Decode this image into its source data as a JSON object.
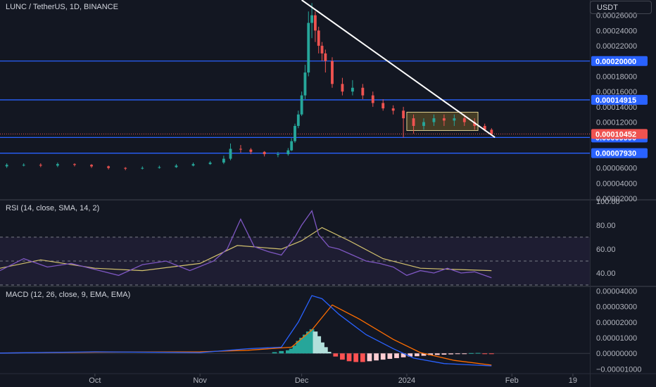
{
  "header": {
    "title": "LUNC / TetherUS, 1D, BINANCE",
    "currency": "USDT"
  },
  "colors": {
    "background": "#131722",
    "up": "#26a69a",
    "down": "#ef5350",
    "level_line": "#2962ff",
    "trend_line": "#ffffff",
    "rsi_line": "#7e57c2",
    "rsi_ma": "#d4c36f",
    "macd_line": "#2962ff",
    "signal_line": "#ff6d00"
  },
  "chart_data": [
    {
      "type": "candlestick",
      "pane": "price",
      "ylim": [
        2e-05,
        0.00028
      ],
      "x_tick_labels": [
        "Oct",
        "Nov",
        "Dec",
        "2024",
        "Feb",
        "19"
      ],
      "y_tick_labels": [
        "0.00026000",
        "0.00024000",
        "0.00022000",
        "0.00018000",
        "0.00016000",
        "0.00014000",
        "0.00012000",
        "0.00006000",
        "0.00004000",
        "0.00002000"
      ],
      "x_ticks": [
        "2023-10-01",
        "2023-11-01",
        "2023-12-01",
        "2024-01-01",
        "2024-02-01",
        "2024-02-19"
      ],
      "x_range": [
        "2023-09-03",
        "2024-02-24"
      ],
      "series": [
        {
          "name": "LUNC / TetherUS",
          "x": [
            "2023-09-05",
            "2023-09-10",
            "2023-09-15",
            "2023-09-20",
            "2023-09-25",
            "2023-09-30",
            "2023-10-05",
            "2023-10-10",
            "2023-10-15",
            "2023-10-20",
            "2023-10-25",
            "2023-10-30",
            "2023-11-04",
            "2023-11-08",
            "2023-11-10",
            "2023-11-13",
            "2023-11-16",
            "2023-11-20",
            "2023-11-24",
            "2023-11-27",
            "2023-11-28",
            "2023-11-29",
            "2023-11-30",
            "2023-12-01",
            "2023-12-02",
            "2023-12-03",
            "2023-12-04",
            "2023-12-05",
            "2023-12-06",
            "2023-12-07",
            "2023-12-08",
            "2023-12-10",
            "2023-12-13",
            "2023-12-16",
            "2023-12-19",
            "2023-12-22",
            "2023-12-25",
            "2023-12-28",
            "2023-12-31",
            "2024-01-03",
            "2024-01-06",
            "2024-01-09",
            "2024-01-12",
            "2024-01-15",
            "2024-01-18",
            "2024-01-21",
            "2024-01-24",
            "2024-01-26"
          ],
          "open": [
            6.2e-05,
            6.4e-05,
            6.4e-05,
            6.3e-05,
            6.5e-05,
            6.4e-05,
            6.2e-05,
            6e-05,
            5.9e-05,
            6e-05,
            6.1e-05,
            6.3e-05,
            6.5e-05,
            6.7e-05,
            7.2e-05,
            8.5e-05,
            8.4e-05,
            8.1e-05,
            7.8e-05,
            7.8e-05,
            8.3e-05,
            9.5e-05,
            0.000115,
            0.00013,
            0.000155,
            0.000185,
            0.00025,
            0.00026,
            0.00024,
            0.00022,
            0.00021,
            0.0002,
            0.00017,
            0.00016,
            0.000165,
            0.000155,
            0.000145,
            0.000138,
            0.000135,
            0.000125,
            0.000115,
            0.00012,
            0.000125,
            0.000122,
            0.000125,
            0.00012,
            0.000115,
            0.00011
          ],
          "close": [
            6.4e-05,
            6.4e-05,
            6.3e-05,
            6.5e-05,
            6.4e-05,
            6.2e-05,
            6e-05,
            5.9e-05,
            6e-05,
            6.1e-05,
            6.3e-05,
            6.5e-05,
            6.7e-05,
            7.2e-05,
            8.5e-05,
            8.4e-05,
            8.1e-05,
            7.8e-05,
            7.8e-05,
            8.3e-05,
            9.5e-05,
            0.000115,
            0.00013,
            0.000155,
            0.000185,
            0.00025,
            0.00026,
            0.00024,
            0.00022,
            0.00021,
            0.0002,
            0.00017,
            0.00016,
            0.000165,
            0.000155,
            0.000145,
            0.000138,
            0.000135,
            0.000125,
            0.000115,
            0.00012,
            0.000125,
            0.000122,
            0.000125,
            0.00012,
            0.000115,
            0.00011,
            0.0001045
          ],
          "high": [
            6.6e-05,
            6.6e-05,
            6.6e-05,
            6.7e-05,
            6.6e-05,
            6.5e-05,
            6.3e-05,
            6.1e-05,
            6.2e-05,
            6.3e-05,
            6.5e-05,
            6.7e-05,
            6.9e-05,
            7.6e-05,
            9.2e-05,
            9e-05,
            8.6e-05,
            8.2e-05,
            8.1e-05,
            8.6e-05,
            9.9e-05,
            0.000118,
            0.000135,
            0.00016,
            0.000195,
            0.000265,
            0.000276,
            0.000265,
            0.000245,
            0.000225,
            0.000215,
            0.000205,
            0.000178,
            0.000175,
            0.00017,
            0.00016,
            0.00015,
            0.000142,
            0.00014,
            0.00013,
            0.000125,
            0.00013,
            0.00013,
            0.00013,
            0.00013,
            0.000125,
            0.000118,
            0.000112
          ],
          "low": [
            6e-05,
            6.2e-05,
            6.1e-05,
            6.1e-05,
            6.2e-05,
            6e-05,
            5.8e-05,
            5.7e-05,
            5.8e-05,
            5.9e-05,
            6e-05,
            6.2e-05,
            6.4e-05,
            6.5e-05,
            7e-05,
            8e-05,
            7.8e-05,
            7.5e-05,
            7.4e-05,
            7.6e-05,
            8.2e-05,
            9.3e-05,
            0.000112,
            0.000128,
            0.00015,
            0.00018,
            0.00023,
            0.000225,
            0.00021,
            0.0002,
            0.000185,
            0.000165,
            0.000155,
            0.000155,
            0.00015,
            0.00014,
            0.000135,
            0.00013,
            0.0001,
            0.000105,
            0.00011,
            0.000115,
            0.000115,
            0.000115,
            0.000115,
            0.00011,
            0.000108,
            0.000103
          ]
        }
      ],
      "levels": [
        {
          "label": "0.00020000",
          "value": 0.0002
        },
        {
          "label": "0.00014915",
          "value": 0.00014915
        },
        {
          "label": "0.00009990",
          "value": 9.99e-05
        },
        {
          "label": "0.00007930",
          "value": 7.93e-05
        }
      ],
      "last_price": {
        "label": "0.00010452",
        "value": 0.00010452
      },
      "trend_line": {
        "x": [
          "2023-12-01",
          "2024-01-27"
        ],
        "y": [
          0.00028,
          0.0001
        ]
      },
      "range_box": {
        "x": [
          "2024-01-01",
          "2024-01-22"
        ],
        "y": [
          0.000109,
          0.000133
        ]
      }
    },
    {
      "type": "line",
      "pane": "rsi",
      "title": "RSI (14, close, SMA, 14, 2)",
      "ylim": [
        30,
        100
      ],
      "y_tick_labels": [
        "100.00",
        "80.00",
        "60.00",
        "40.00"
      ],
      "bands": [
        30,
        50,
        70
      ],
      "series": [
        {
          "name": "RSI",
          "x": [
            "2023-09-03",
            "2023-09-10",
            "2023-09-17",
            "2023-09-24",
            "2023-10-01",
            "2023-10-08",
            "2023-10-15",
            "2023-10-22",
            "2023-10-29",
            "2023-11-05",
            "2023-11-09",
            "2023-11-13",
            "2023-11-17",
            "2023-11-21",
            "2023-11-25",
            "2023-11-29",
            "2023-12-01",
            "2023-12-04",
            "2023-12-06",
            "2023-12-09",
            "2023-12-12",
            "2023-12-16",
            "2023-12-20",
            "2023-12-24",
            "2023-12-28",
            "2024-01-01",
            "2024-01-05",
            "2024-01-09",
            "2024-01-13",
            "2024-01-17",
            "2024-01-21",
            "2024-01-26"
          ],
          "y": [
            42,
            52,
            45,
            48,
            43,
            38,
            47,
            50,
            42,
            50,
            60,
            85,
            62,
            58,
            55,
            70,
            80,
            92,
            72,
            62,
            60,
            55,
            50,
            48,
            45,
            38,
            42,
            40,
            44,
            40,
            41,
            36
          ]
        },
        {
          "name": "RSI-based MA",
          "x": [
            "2023-09-03",
            "2023-09-15",
            "2023-10-01",
            "2023-10-15",
            "2023-11-01",
            "2023-11-12",
            "2023-11-25",
            "2023-12-01",
            "2023-12-07",
            "2023-12-15",
            "2023-12-25",
            "2024-01-05",
            "2024-01-15",
            "2024-01-26"
          ],
          "y": [
            44,
            51,
            44,
            42,
            48,
            63,
            60,
            67,
            78,
            67,
            52,
            44,
            43,
            42
          ]
        }
      ]
    },
    {
      "type": "bar+line",
      "pane": "macd",
      "title": "MACD (12, 26, close, 9, EMA, EMA)",
      "ylim": [
        -1.25e-05,
        4.2e-05
      ],
      "y_tick_labels": [
        "0.00004000",
        "0.00003000",
        "0.00002000",
        "0.00001000",
        "0.00000000",
        "−0.00001000"
      ],
      "series": [
        {
          "name": "MACD",
          "x": [
            "2023-09-03",
            "2023-10-01",
            "2023-11-01",
            "2023-11-15",
            "2023-11-25",
            "2023-11-30",
            "2023-12-04",
            "2023-12-07",
            "2023-12-12",
            "2023-12-20",
            "2023-12-28",
            "2024-01-03",
            "2024-01-12",
            "2024-01-26"
          ],
          "y": [
            2e-07,
            1e-06,
            5e-07,
            3e-06,
            4e-06,
            2e-05,
            3.7e-05,
            3.5e-05,
            2.5e-05,
            1.2e-05,
            3e-06,
            -3e-06,
            -6.5e-06,
            -8e-06
          ]
        },
        {
          "name": "Signal",
          "x": [
            "2023-09-03",
            "2023-10-01",
            "2023-11-01",
            "2023-11-15",
            "2023-11-28",
            "2023-12-04",
            "2023-12-10",
            "2023-12-18",
            "2023-12-28",
            "2024-01-05",
            "2024-01-15",
            "2024-01-26"
          ],
          "y": [
            3e-07,
            8e-07,
            1e-06,
            2e-06,
            4e-06,
            1.5e-05,
            3.1e-05,
            2.2e-05,
            9e-06,
            5e-07,
            -4.5e-06,
            -7.5e-06
          ]
        },
        {
          "name": "Histogram",
          "x": [
            "2023-11-23",
            "2023-11-25",
            "2023-11-27",
            "2023-11-28",
            "2023-11-29",
            "2023-11-30",
            "2023-12-01",
            "2023-12-02",
            "2023-12-03",
            "2023-12-04",
            "2023-12-05",
            "2023-12-06",
            "2023-12-07",
            "2023-12-08",
            "2023-12-09",
            "2023-12-11",
            "2023-12-13",
            "2023-12-15",
            "2023-12-17",
            "2023-12-19",
            "2023-12-21",
            "2023-12-23",
            "2023-12-25",
            "2023-12-27",
            "2023-12-29",
            "2023-12-31",
            "2024-01-02",
            "2024-01-04",
            "2024-01-06",
            "2024-01-08",
            "2024-01-10",
            "2024-01-12",
            "2024-01-14",
            "2024-01-16",
            "2024-01-18",
            "2024-01-20",
            "2024-01-22",
            "2024-01-24",
            "2024-01-26"
          ],
          "y": [
            8e-07,
            1.5e-06,
            2e-06,
            3e-06,
            5e-06,
            8e-06,
            1e-05,
            1.2e-05,
            1.4e-05,
            1.55e-05,
            1.4e-05,
            1.1e-05,
            7e-06,
            4e-06,
            1e-06,
            -2e-06,
            -4e-06,
            -5e-06,
            -5.5e-06,
            -5.5e-06,
            -5e-06,
            -4.5e-06,
            -4e-06,
            -3.5e-06,
            -3e-06,
            -2.5e-06,
            -2e-06,
            -1.8e-06,
            -1.5e-06,
            -1.2e-06,
            -1e-06,
            -8e-07,
            -6e-07,
            -4e-07,
            -2e-07,
            2e-07,
            3e-07,
            -2e-07,
            -4e-07
          ]
        }
      ]
    }
  ]
}
